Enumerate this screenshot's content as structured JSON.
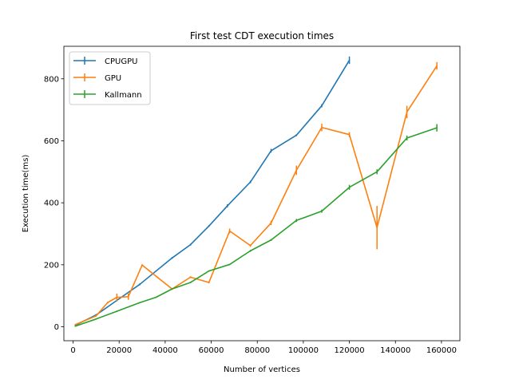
{
  "chart_data": {
    "type": "line",
    "title": "First test CDT execution times",
    "xlabel": "Number of vertices",
    "ylabel": "Execution time(ms)",
    "xlim": [
      -4000,
      168000
    ],
    "ylim": [
      -45,
      905
    ],
    "xticks": [
      0,
      20000,
      40000,
      60000,
      80000,
      100000,
      120000,
      140000,
      160000
    ],
    "yticks": [
      0,
      200,
      400,
      600,
      800
    ],
    "grid": false,
    "legend_position": "upper left",
    "series": [
      {
        "name": "CPUGPU",
        "color": "#1f77b4",
        "x": [
          1000,
          10000,
          19000,
          29000,
          43000,
          51000,
          59000,
          67000,
          77000,
          86000,
          97000,
          108000,
          120000
        ],
        "y": [
          5,
          38,
          85,
          137,
          222,
          265,
          325,
          390,
          467,
          568,
          618,
          713,
          860
        ],
        "err": [
          2,
          3,
          3,
          3,
          3,
          3,
          3,
          5,
          4,
          6,
          3,
          5,
          12
        ]
      },
      {
        "name": "GPU",
        "color": "#ff7f0e",
        "x": [
          1000,
          10000,
          15000,
          19000,
          24000,
          30000,
          43000,
          51000,
          59000,
          68000,
          77000,
          86000,
          97000,
          108000,
          120000,
          132000,
          145000,
          158000
        ],
        "y": [
          7,
          35,
          78,
          95,
          97,
          199,
          122,
          160,
          143,
          309,
          262,
          335,
          505,
          643,
          620,
          320,
          693,
          842
        ],
        "err": [
          2,
          2,
          3,
          12,
          10,
          3,
          3,
          3,
          3,
          8,
          4,
          7,
          15,
          12,
          8,
          70,
          20,
          12
        ]
      },
      {
        "name": "Kallmann",
        "color": "#2ca02c",
        "x": [
          1000,
          10000,
          19000,
          29000,
          36000,
          43000,
          51000,
          59000,
          68000,
          77000,
          86000,
          97000,
          108000,
          120000,
          132000,
          145000,
          158000
        ],
        "y": [
          2,
          25,
          50,
          78,
          95,
          122,
          143,
          180,
          201,
          245,
          280,
          343,
          373,
          450,
          500,
          609,
          642
        ],
        "err": [
          1,
          2,
          2,
          2,
          2,
          2,
          2,
          2,
          2,
          3,
          3,
          5,
          5,
          8,
          8,
          8,
          12
        ]
      }
    ]
  }
}
